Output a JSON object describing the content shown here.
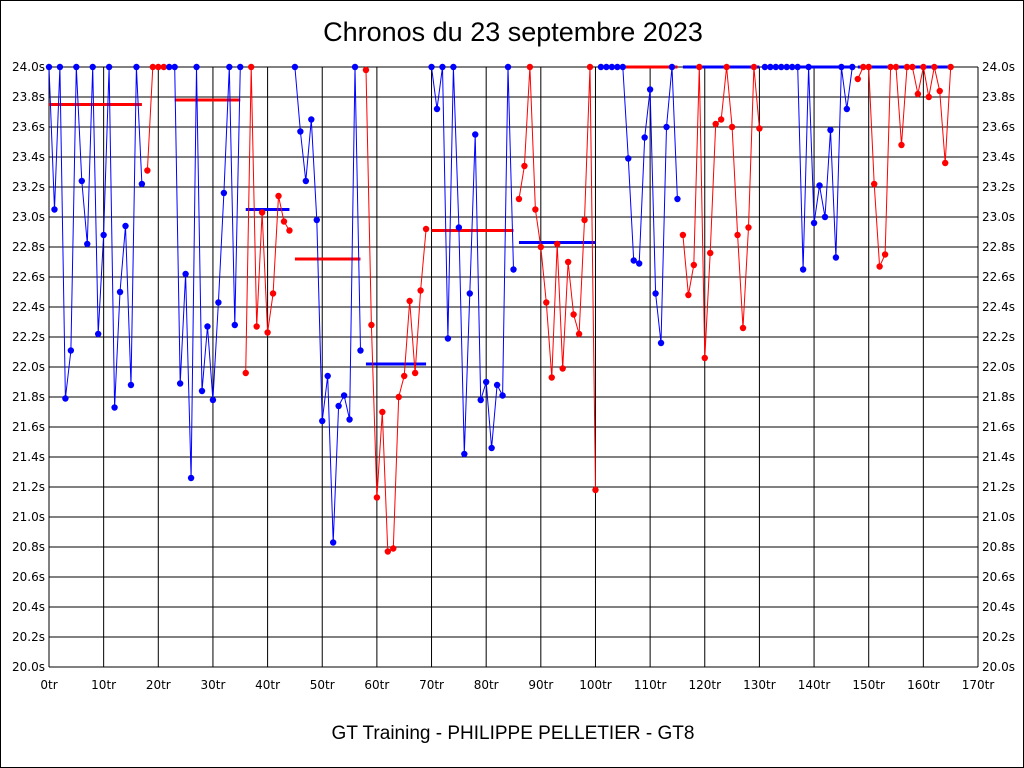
{
  "chart_data": {
    "type": "line",
    "title": "Chronos du 23 septembre 2023",
    "footer": "GT Training - PHILIPPE PELLETIER - GT8",
    "xlabel": "",
    "ylabel": "",
    "xlim": [
      0,
      170
    ],
    "ylim": [
      20.0,
      24.0
    ],
    "grid": true,
    "x_ticks": [
      "0tr",
      "10tr",
      "20tr",
      "30tr",
      "40tr",
      "50tr",
      "60tr",
      "70tr",
      "80tr",
      "90tr",
      "100tr",
      "110tr",
      "120tr",
      "130tr",
      "140tr",
      "150tr",
      "160tr",
      "170tr"
    ],
    "y_ticks": [
      "20.0s",
      "20.2s",
      "20.4s",
      "20.6s",
      "20.8s",
      "21.0s",
      "21.2s",
      "21.4s",
      "21.6s",
      "21.8s",
      "22.0s",
      "22.2s",
      "22.4s",
      "22.6s",
      "22.8s",
      "23.0s",
      "23.2s",
      "23.4s",
      "23.6s",
      "23.8s",
      "24.0s"
    ],
    "series": [
      {
        "color": "#0000ff",
        "points": [
          [
            0,
            24.0
          ],
          [
            1,
            23.05
          ],
          [
            2,
            24.0
          ],
          [
            3,
            21.79
          ],
          [
            4,
            22.11
          ],
          [
            5,
            24.0
          ],
          [
            6,
            23.24
          ],
          [
            7,
            22.82
          ],
          [
            8,
            24.0
          ],
          [
            9,
            22.22
          ],
          [
            10,
            22.88
          ],
          [
            11,
            24.0
          ],
          [
            12,
            21.73
          ],
          [
            13,
            22.5
          ],
          [
            14,
            22.94
          ],
          [
            15,
            21.88
          ],
          [
            16,
            24.0
          ],
          [
            17,
            23.22
          ]
        ]
      },
      {
        "color": "#ff0000",
        "points": [
          [
            18,
            23.31
          ],
          [
            19,
            24.0
          ],
          [
            20,
            24.0
          ],
          [
            21,
            24.0
          ]
        ]
      },
      {
        "color": "#0000ff",
        "points": [
          [
            22,
            24.0
          ],
          [
            23,
            24.0
          ],
          [
            24,
            21.89
          ],
          [
            25,
            22.62
          ],
          [
            26,
            21.26
          ],
          [
            27,
            24.0
          ],
          [
            28,
            21.84
          ],
          [
            29,
            22.27
          ],
          [
            30,
            21.78
          ],
          [
            31,
            22.43
          ],
          [
            32,
            23.16
          ],
          [
            33,
            24.0
          ],
          [
            34,
            22.28
          ],
          [
            35,
            24.0
          ]
        ]
      },
      {
        "color": "#ff0000",
        "points": [
          [
            36,
            21.96
          ],
          [
            37,
            24.0
          ],
          [
            38,
            22.27
          ],
          [
            39,
            23.03
          ],
          [
            40,
            22.23
          ],
          [
            41,
            22.49
          ],
          [
            42,
            23.14
          ],
          [
            43,
            22.97
          ],
          [
            44,
            22.91
          ]
        ]
      },
      {
        "color": "#0000ff",
        "points": [
          [
            45,
            24.0
          ],
          [
            46,
            23.57
          ],
          [
            47,
            23.24
          ],
          [
            48,
            23.65
          ],
          [
            49,
            22.98
          ],
          [
            50,
            21.64
          ],
          [
            51,
            21.94
          ],
          [
            52,
            20.83
          ],
          [
            53,
            21.74
          ],
          [
            54,
            21.81
          ],
          [
            55,
            21.65
          ],
          [
            56,
            24.0
          ],
          [
            57,
            22.11
          ]
        ]
      },
      {
        "color": "#ff0000",
        "points": [
          [
            58,
            23.98
          ],
          [
            59,
            22.28
          ],
          [
            60,
            21.13
          ],
          [
            61,
            21.7
          ],
          [
            62,
            20.77
          ],
          [
            63,
            20.79
          ],
          [
            64,
            21.8
          ],
          [
            65,
            21.94
          ],
          [
            66,
            22.44
          ],
          [
            67,
            21.96
          ],
          [
            68,
            22.51
          ],
          [
            69,
            22.92
          ]
        ]
      },
      {
        "color": "#0000ff",
        "points": [
          [
            70,
            24.0
          ],
          [
            71,
            23.72
          ],
          [
            72,
            24.0
          ],
          [
            73,
            22.19
          ],
          [
            74,
            24.0
          ],
          [
            75,
            22.93
          ],
          [
            76,
            21.42
          ],
          [
            77,
            22.49
          ],
          [
            78,
            23.55
          ],
          [
            79,
            21.78
          ],
          [
            80,
            21.9
          ],
          [
            81,
            21.46
          ],
          [
            82,
            21.88
          ],
          [
            83,
            21.81
          ],
          [
            84,
            24.0
          ],
          [
            85,
            22.65
          ]
        ]
      },
      {
        "color": "#ff0000",
        "points": [
          [
            86,
            23.12
          ],
          [
            87,
            23.34
          ],
          [
            88,
            24.0
          ],
          [
            89,
            23.05
          ],
          [
            90,
            22.8
          ],
          [
            91,
            22.43
          ],
          [
            92,
            21.93
          ],
          [
            93,
            22.82
          ],
          [
            94,
            21.99
          ],
          [
            95,
            22.7
          ],
          [
            96,
            22.35
          ],
          [
            97,
            22.22
          ],
          [
            98,
            22.98
          ],
          [
            99,
            24.0
          ],
          [
            100,
            21.18
          ]
        ]
      },
      {
        "color": "#0000ff",
        "points": [
          [
            101,
            24.0
          ],
          [
            102,
            24.0
          ],
          [
            103,
            24.0
          ],
          [
            104,
            24.0
          ],
          [
            105,
            24.0
          ],
          [
            106,
            23.39
          ],
          [
            107,
            22.71
          ],
          [
            108,
            22.69
          ],
          [
            109,
            23.53
          ],
          [
            110,
            23.85
          ],
          [
            111,
            22.49
          ],
          [
            112,
            22.16
          ],
          [
            113,
            23.6
          ],
          [
            114,
            24.0
          ],
          [
            115,
            23.12
          ]
        ]
      },
      {
        "color": "#ff0000",
        "points": [
          [
            116,
            22.88
          ],
          [
            117,
            22.48
          ],
          [
            118,
            22.68
          ],
          [
            119,
            24.0
          ],
          [
            120,
            22.06
          ],
          [
            121,
            22.76
          ],
          [
            122,
            23.62
          ],
          [
            123,
            23.65
          ],
          [
            124,
            24.0
          ],
          [
            125,
            23.6
          ],
          [
            126,
            22.88
          ],
          [
            127,
            22.26
          ],
          [
            128,
            22.93
          ],
          [
            129,
            24.0
          ],
          [
            130,
            23.59
          ]
        ]
      },
      {
        "color": "#0000ff",
        "points": [
          [
            131,
            24.0
          ],
          [
            132,
            24.0
          ],
          [
            133,
            24.0
          ],
          [
            134,
            24.0
          ],
          [
            135,
            24.0
          ],
          [
            136,
            24.0
          ],
          [
            137,
            24.0
          ],
          [
            138,
            22.65
          ],
          [
            139,
            24.0
          ],
          [
            140,
            22.96
          ],
          [
            141,
            23.21
          ],
          [
            142,
            23.0
          ],
          [
            143,
            23.58
          ],
          [
            144,
            22.73
          ],
          [
            145,
            24.0
          ],
          [
            146,
            23.72
          ],
          [
            147,
            24.0
          ]
        ]
      },
      {
        "color": "#ff0000",
        "points": [
          [
            148,
            23.92
          ],
          [
            149,
            24.0
          ],
          [
            150,
            24.0
          ],
          [
            151,
            23.22
          ],
          [
            152,
            22.67
          ],
          [
            153,
            22.75
          ],
          [
            154,
            24.0
          ],
          [
            155,
            24.0
          ],
          [
            156,
            23.48
          ],
          [
            157,
            24.0
          ],
          [
            158,
            24.0
          ],
          [
            159,
            23.82
          ],
          [
            160,
            24.0
          ],
          [
            161,
            23.8
          ],
          [
            162,
            24.0
          ],
          [
            163,
            23.84
          ],
          [
            164,
            23.36
          ],
          [
            165,
            24.0
          ]
        ]
      }
    ],
    "averages": [
      {
        "color": "#ff0000",
        "x": [
          0,
          17
        ],
        "y": 23.75
      },
      {
        "color": "#ff0000",
        "x": [
          23,
          35
        ],
        "y": 23.78
      },
      {
        "color": "#0000ff",
        "x": [
          36,
          44
        ],
        "y": 23.05
      },
      {
        "color": "#ff0000",
        "x": [
          45,
          57
        ],
        "y": 22.72
      },
      {
        "color": "#0000ff",
        "x": [
          58,
          69
        ],
        "y": 22.02
      },
      {
        "color": "#ff0000",
        "x": [
          70,
          85
        ],
        "y": 22.91
      },
      {
        "color": "#0000ff",
        "x": [
          86,
          100
        ],
        "y": 22.83
      },
      {
        "color": "#ff0000",
        "x": [
          101,
          115
        ],
        "y": 24.0
      },
      {
        "color": "#0000ff",
        "x": [
          116,
          130
        ],
        "y": 24.0
      },
      {
        "color": "#0000ff",
        "x": [
          131,
          147
        ],
        "y": 24.0
      },
      {
        "color": "#0000ff",
        "x": [
          148,
          165
        ],
        "y": 24.0
      }
    ]
  }
}
